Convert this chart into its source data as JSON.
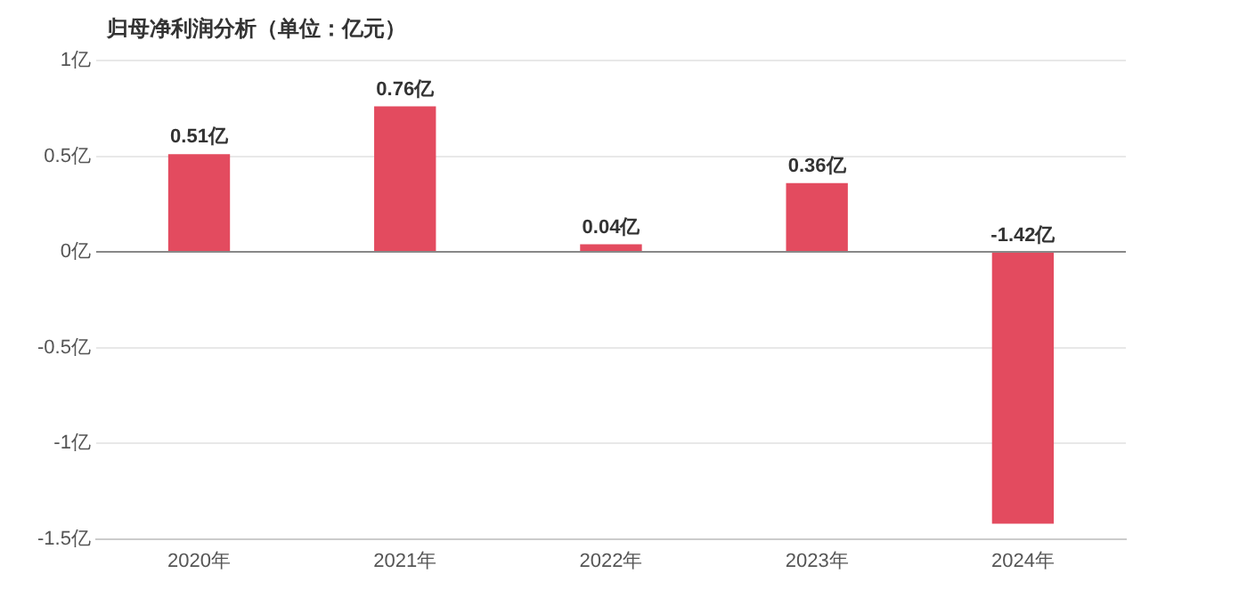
{
  "chart_data": {
    "type": "bar",
    "title": "归母净利润分析（单位：亿元）",
    "categories": [
      "2020年",
      "2021年",
      "2022年",
      "2023年",
      "2024年"
    ],
    "values": [
      0.51,
      0.76,
      0.04,
      0.36,
      -1.42
    ],
    "value_labels": [
      "0.51亿",
      "0.76亿",
      "0.04亿",
      "0.36亿",
      "-1.42亿"
    ],
    "color": "#e34b5f",
    "ylim": [
      -1.5,
      1
    ],
    "yticks": [
      {
        "value": -1.5,
        "label": "-1.5亿"
      },
      {
        "value": -1,
        "label": "-1亿"
      },
      {
        "value": -0.5,
        "label": "-0.5亿"
      },
      {
        "value": 0,
        "label": "0亿"
      },
      {
        "value": 0.5,
        "label": "0.5亿"
      },
      {
        "value": 1,
        "label": "1亿"
      }
    ],
    "grid": "y",
    "legend": false
  }
}
